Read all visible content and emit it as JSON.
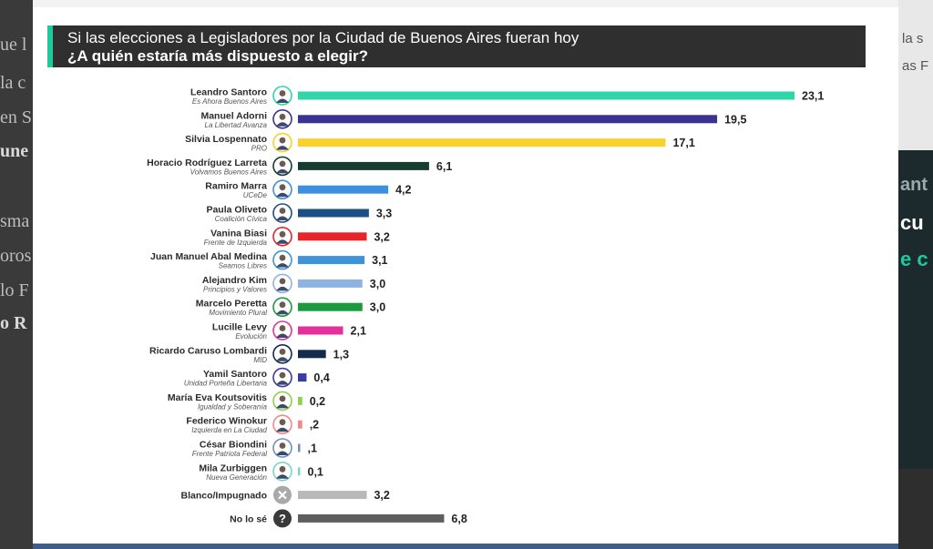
{
  "background": {
    "left_fragments": [
      "ue l",
      "la c",
      "en S",
      "une",
      "sma",
      "oros",
      "lo F",
      "o R"
    ],
    "right_fragments_light": [
      "la s",
      "as F"
    ],
    "right_fragments_dark": [
      "ant",
      "cu",
      "e c"
    ]
  },
  "chart_data": {
    "type": "bar",
    "orientation": "horizontal",
    "title": "Si las elecciones a Legisladores por la Ciudad de Buenos Aires fueran hoy",
    "subtitle": "¿A quién estaría más dispuesto a elegir?",
    "xlim": [
      0,
      23.1
    ],
    "grid": false,
    "legend": "none",
    "categories": [
      {
        "name": "Leandro Santoro",
        "party": "Es Ahora Buenos Aires",
        "value": 23.1,
        "label": "23,1",
        "color": "#2fd6a8",
        "icon": "candidate-photo"
      },
      {
        "name": "Manuel Adorni",
        "party": "La Libertad Avanza",
        "value": 19.5,
        "label": "19,5",
        "color": "#3a3393",
        "icon": "candidate-photo"
      },
      {
        "name": "Silvia Lospennato",
        "party": "PRO",
        "value": 17.1,
        "label": "17,1",
        "color": "#f9d12c",
        "icon": "candidate-photo"
      },
      {
        "name": "Horacio Rodríguez Larreta",
        "party": "Volvamos Buenos Aires",
        "value": 6.1,
        "label": "6,1",
        "color": "#163d30",
        "icon": "candidate-photo"
      },
      {
        "name": "Ramiro Marra",
        "party": "UCeDe",
        "value": 4.2,
        "label": "4,2",
        "color": "#3e8fe0",
        "icon": "candidate-photo"
      },
      {
        "name": "Paula Oliveto",
        "party": "Coalición Cívica",
        "value": 3.3,
        "label": "3,3",
        "color": "#1c4f86",
        "icon": "candidate-photo"
      },
      {
        "name": "Vanina Biasi",
        "party": "Frente de Izquierda",
        "value": 3.2,
        "label": "3,2",
        "color": "#e8232a",
        "icon": "candidate-photo"
      },
      {
        "name": "Juan Manuel Abal Medina",
        "party": "Seamos Libres",
        "value": 3.1,
        "label": "3,1",
        "color": "#3f93d6",
        "icon": "candidate-photo"
      },
      {
        "name": "Alejandro Kim",
        "party": "Principios y Valores",
        "value": 3.0,
        "label": "3,0",
        "color": "#8fb3e0",
        "icon": "candidate-photo"
      },
      {
        "name": "Marcelo Peretta",
        "party": "Movimiento Plural",
        "value": 3.0,
        "label": "3,0",
        "color": "#1c9a3e",
        "icon": "candidate-photo"
      },
      {
        "name": "Lucille Levy",
        "party": "Evolución",
        "value": 2.1,
        "label": "2,1",
        "color": "#e2319b",
        "icon": "candidate-photo"
      },
      {
        "name": "Ricardo Caruso Lombardi",
        "party": "MID",
        "value": 1.3,
        "label": "1,3",
        "color": "#142a4a",
        "icon": "candidate-photo"
      },
      {
        "name": "Yamil Santoro",
        "party": "Unidad Porteña Libertaria",
        "value": 0.4,
        "label": "0,4",
        "color": "#3a3aa8",
        "icon": "candidate-photo"
      },
      {
        "name": "María Eva Koutsovitis",
        "party": "Igualdad y Soberanía",
        "value": 0.2,
        "label": "0,2",
        "color": "#8fd14f",
        "icon": "candidate-photo"
      },
      {
        "name": "Federico Winokur",
        "party": "Izquierda en La Ciudad",
        "value": 0.2,
        "label": ",2",
        "color": "#f08a8a",
        "icon": "candidate-photo"
      },
      {
        "name": "César Biondini",
        "party": "Frente Patriota Federal",
        "value": 0.1,
        "label": ",1",
        "color": "#6f8fc8",
        "icon": "candidate-photo"
      },
      {
        "name": "Mila Zurbiggen",
        "party": "Nueva Generación",
        "value": 0.1,
        "label": "0,1",
        "color": "#7fd0d0",
        "icon": "candidate-photo"
      },
      {
        "name": "Blanco/Impugnado",
        "party": "",
        "value": 3.2,
        "label": "3,2",
        "color": "#b8b8b8",
        "icon": "x-icon"
      },
      {
        "name": "No lo sé",
        "party": "",
        "value": 6.8,
        "label": "6,8",
        "color": "#5e5e5e",
        "icon": "question-icon"
      }
    ]
  }
}
